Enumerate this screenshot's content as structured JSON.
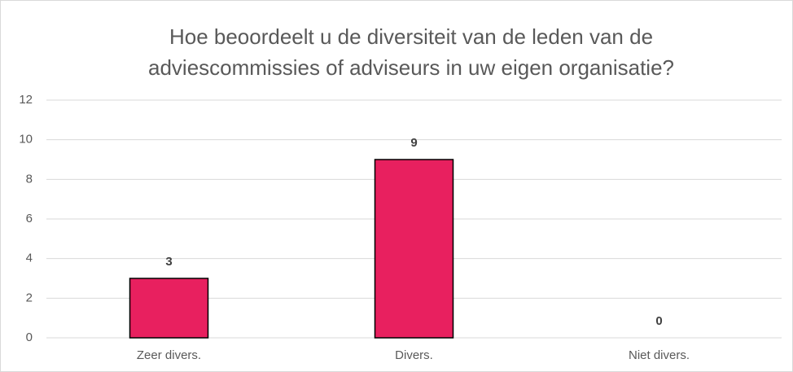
{
  "chart_data": {
    "type": "bar",
    "title": [
      "Hoe beoordeelt u de diversiteit van de leden van de",
      "adviescommissies of adviseurs in uw eigen organisatie?"
    ],
    "categories": [
      "Zeer divers.",
      "Divers.",
      "Niet divers."
    ],
    "values": [
      3,
      9,
      0
    ],
    "color": "#e8205f",
    "ylim": [
      0,
      12
    ],
    "yticks": [
      0,
      2,
      4,
      6,
      8,
      10,
      12
    ],
    "grid": true
  }
}
